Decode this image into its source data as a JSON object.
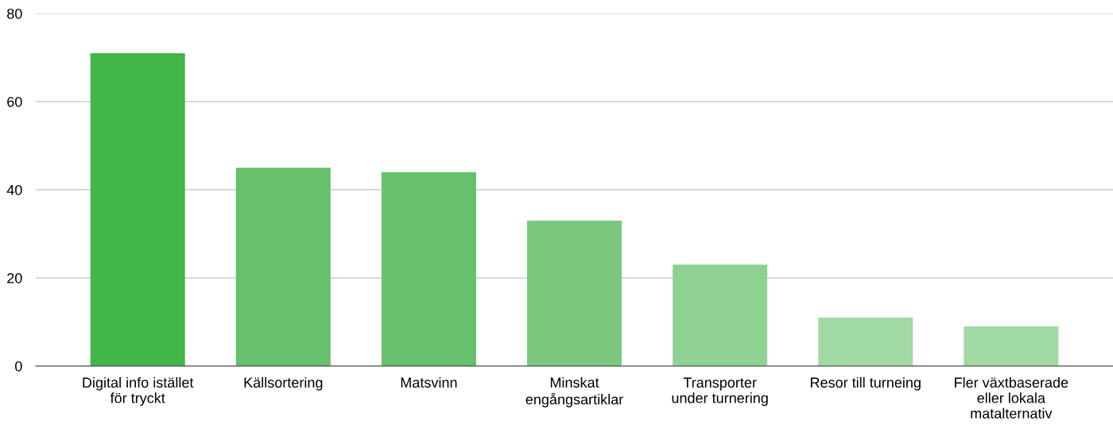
{
  "chart_data": {
    "type": "bar",
    "categories": [
      "Digital info istället\nför tryckt",
      "Källsortering",
      "Matsvinn",
      "Minskat\nengångsartiklar",
      "Transporter\nunder turnering",
      "Resor till turneing",
      "Fler växtbaserade\neller lokala\nmatalternativ"
    ],
    "values": [
      71,
      45,
      44,
      33,
      23,
      11,
      9
    ],
    "colors": [
      "#43b649",
      "#66c06c",
      "#66c06c",
      "#7bc87f",
      "#8fd192",
      "#a1d9a3",
      "#a1d9a3"
    ],
    "ylim": [
      0,
      80
    ],
    "yticks": [
      0,
      20,
      40,
      60,
      80
    ],
    "grid": "y",
    "legend": false
  }
}
